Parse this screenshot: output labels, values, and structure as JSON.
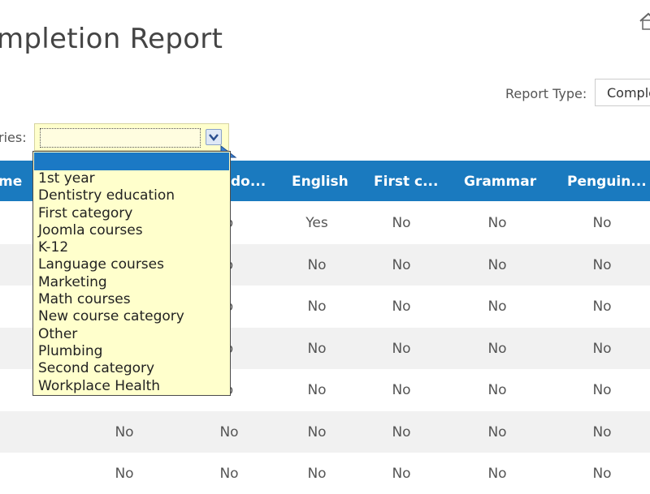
{
  "page": {
    "title": "mpletion Report"
  },
  "report_type": {
    "label": "Report Type:",
    "value": "Comple"
  },
  "categories": {
    "label": "ries:"
  },
  "table": {
    "headers": [
      "me",
      "do...",
      "English",
      "First c...",
      "Grammar",
      "Penguin..."
    ],
    "rows": [
      [
        "",
        "",
        "o",
        "Yes",
        "No",
        "No",
        "No"
      ],
      [
        "",
        "",
        "o",
        "No",
        "No",
        "No",
        "No"
      ],
      [
        "",
        "",
        "o",
        "No",
        "No",
        "No",
        "No"
      ],
      [
        "",
        "",
        "o",
        "No",
        "No",
        "No",
        "No"
      ],
      [
        "",
        "",
        "o",
        "No",
        "No",
        "No",
        "No"
      ],
      [
        "",
        "No",
        "No",
        "No",
        "No",
        "No",
        "No"
      ],
      [
        "",
        "No",
        "No",
        "No",
        "No",
        "No",
        "No"
      ]
    ]
  },
  "dropdown": {
    "options": [
      "",
      "1st year",
      "Dentistry education",
      "First category",
      "Joomla courses",
      "K-12",
      "Language courses",
      "Marketing",
      "Math courses",
      "New course category",
      "Other",
      "Plumbing",
      "Second category",
      "Workplace Health"
    ]
  },
  "colors": {
    "header": "#1a7abf",
    "dropdown_bg": "#ffffcc",
    "selection": "#1b79c5"
  },
  "icons": {
    "home": "home-icon",
    "dropdown_arrow": "chevron-down-icon"
  }
}
